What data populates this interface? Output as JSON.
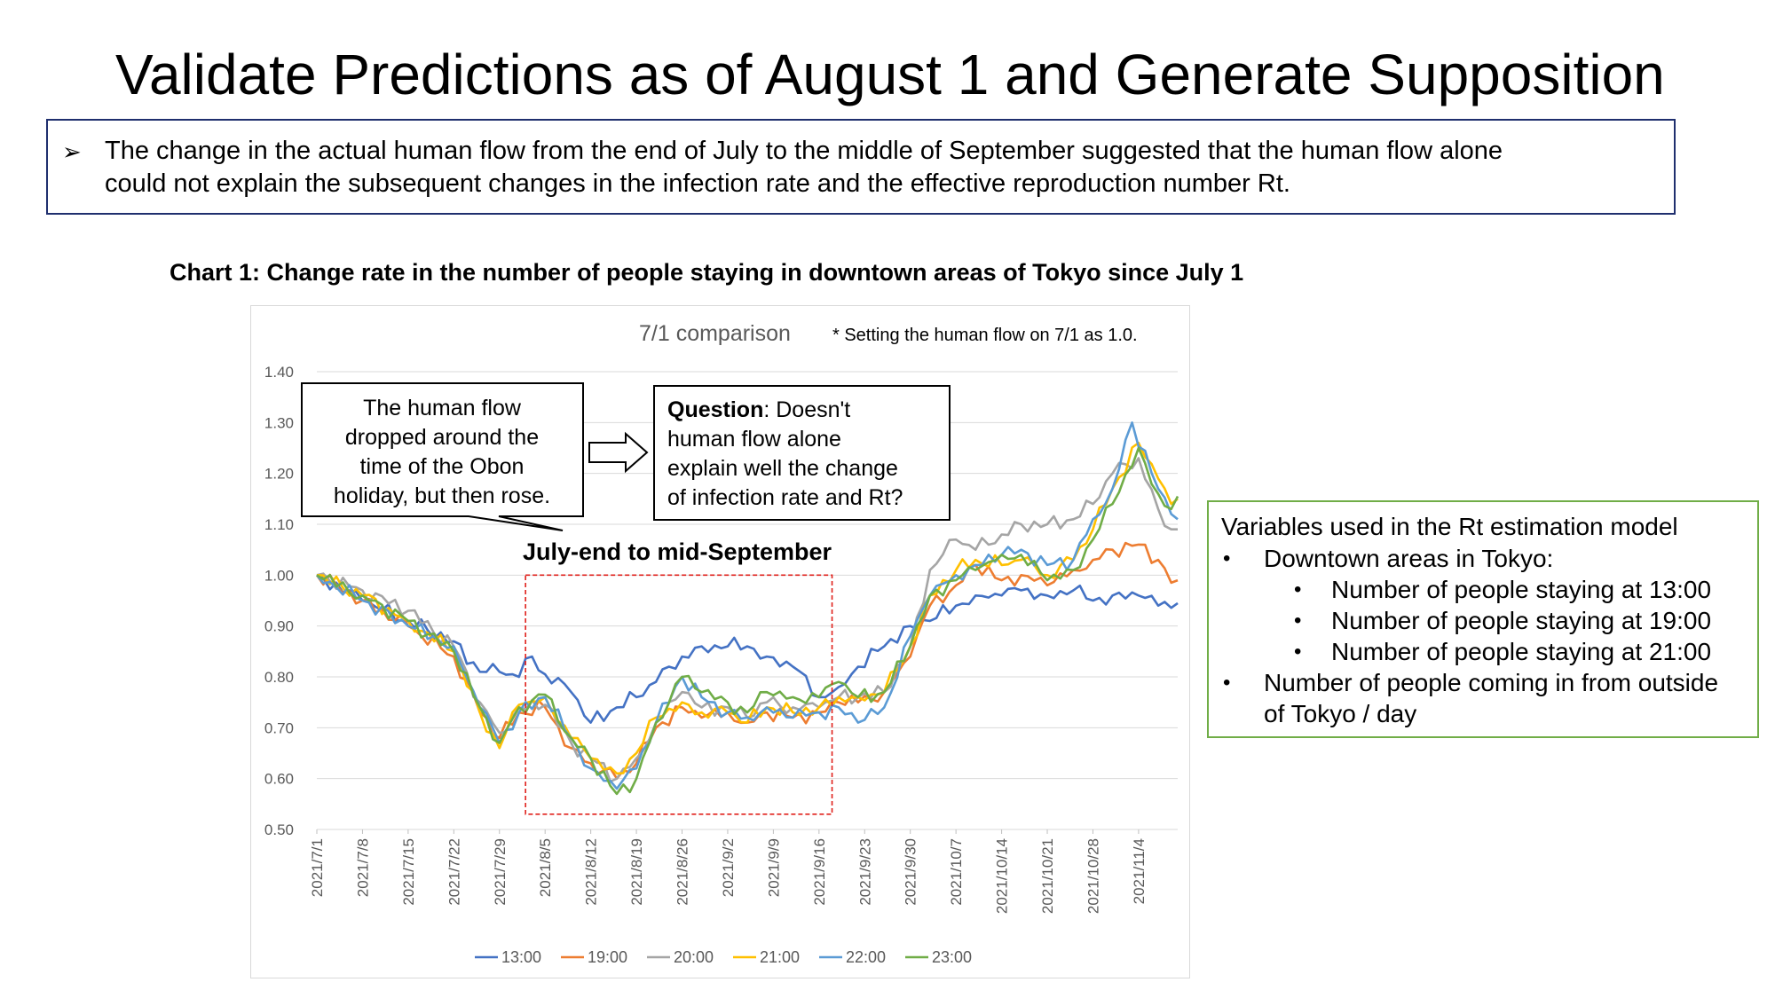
{
  "title": "Validate Predictions as of August 1 and Generate Supposition",
  "summary": {
    "bullet_icon": "arrow-bullet-icon",
    "line1": "The change in the actual human flow from the end of July to the middle of September suggested that the human flow alone",
    "line2": "could not explain the subsequent changes in the infection rate and the effective reproduction number Rt."
  },
  "chart_heading": "Chart 1: Change rate in the number of people staying in downtown areas of Tokyo since July 1",
  "annotations": {
    "inner_title": "7/1 comparison",
    "note": "* Setting the human flow on 7/1 as 1.0.",
    "callout_left": [
      "The human flow",
      "dropped around the",
      "time of the Obon",
      "holiday, but then rose."
    ],
    "question_bold": "Question",
    "question_rest_first": ": Doesn't",
    "question_lines": [
      "human flow alone",
      "explain well the change",
      "of infection rate and Rt?"
    ],
    "highlight_label": "July-end to mid-September",
    "highlight_range": [
      "2021/8/2",
      "2021/9/18"
    ]
  },
  "variables": {
    "title": "Variables used in the Rt estimation model",
    "items": [
      {
        "level": 1,
        "text": "Downtown areas in Tokyo:"
      },
      {
        "level": 2,
        "text": "Number of people staying at 13:00"
      },
      {
        "level": 2,
        "text": "Number of people staying at 19:00"
      },
      {
        "level": 2,
        "text": "Number of people staying at 21:00"
      },
      {
        "level": 1,
        "text": "Number of people coming in from outside"
      },
      {
        "level": 1,
        "text": "of Tokyo / day",
        "continuation": true
      }
    ]
  },
  "chart_data": {
    "type": "line",
    "title": "7/1 comparison",
    "xlabel": "",
    "ylabel": "",
    "ylim": [
      0.5,
      1.4
    ],
    "yticks": [
      "0.50",
      "0.60",
      "0.70",
      "0.80",
      "0.90",
      "1.00",
      "1.10",
      "1.20",
      "1.30",
      "1.40"
    ],
    "x_start": "2021/7/1",
    "x_step_days": 1,
    "x_count": 133,
    "x_tick_labels": [
      "2021/7/1",
      "2021/7/8",
      "2021/7/15",
      "2021/7/22",
      "2021/7/29",
      "2021/8/5",
      "2021/8/12",
      "2021/8/19",
      "2021/8/26",
      "2021/9/2",
      "2021/9/9",
      "2021/9/16",
      "2021/9/23",
      "2021/9/30",
      "2021/10/7",
      "2021/10/14",
      "2021/10/21",
      "2021/10/28",
      "2021/11/4"
    ],
    "grid": true,
    "legend": "bottom",
    "colors": {
      "13:00": "#4472c4",
      "19:00": "#ed7d31",
      "20:00": "#a5a5a5",
      "21:00": "#ffc000",
      "22:00": "#5b9bd5",
      "23:00": "#70ad47"
    },
    "anchors": {
      "13:00": [
        [
          0,
          1.0
        ],
        [
          7,
          0.95
        ],
        [
          14,
          0.91
        ],
        [
          21,
          0.87
        ],
        [
          25,
          0.81
        ],
        [
          28,
          0.81
        ],
        [
          31,
          0.8
        ],
        [
          33,
          0.84
        ],
        [
          35,
          0.805
        ],
        [
          39,
          0.77
        ],
        [
          42,
          0.71
        ],
        [
          46,
          0.74
        ],
        [
          49,
          0.76
        ],
        [
          52,
          0.79
        ],
        [
          56,
          0.84
        ],
        [
          59,
          0.86
        ],
        [
          63,
          0.86
        ],
        [
          66,
          0.86
        ],
        [
          69,
          0.84
        ],
        [
          73,
          0.82
        ],
        [
          77,
          0.76
        ],
        [
          80,
          0.78
        ],
        [
          83,
          0.82
        ],
        [
          87,
          0.86
        ],
        [
          91,
          0.9
        ],
        [
          94,
          0.91
        ],
        [
          98,
          0.94
        ],
        [
          101,
          0.96
        ],
        [
          105,
          0.96
        ],
        [
          108,
          0.97
        ],
        [
          112,
          0.96
        ],
        [
          116,
          0.97
        ],
        [
          119,
          0.95
        ],
        [
          122,
          0.96
        ],
        [
          126,
          0.96
        ],
        [
          129,
          0.94
        ],
        [
          132,
          0.945
        ]
      ],
      "19:00": [
        [
          0,
          1.0
        ],
        [
          7,
          0.95
        ],
        [
          14,
          0.9
        ],
        [
          21,
          0.84
        ],
        [
          25,
          0.73
        ],
        [
          28,
          0.68
        ],
        [
          31,
          0.73
        ],
        [
          35,
          0.74
        ],
        [
          39,
          0.66
        ],
        [
          42,
          0.63
        ],
        [
          46,
          0.6
        ],
        [
          49,
          0.63
        ],
        [
          52,
          0.7
        ],
        [
          56,
          0.74
        ],
        [
          59,
          0.72
        ],
        [
          63,
          0.73
        ],
        [
          66,
          0.71
        ],
        [
          69,
          0.73
        ],
        [
          73,
          0.72
        ],
        [
          77,
          0.73
        ],
        [
          80,
          0.75
        ],
        [
          83,
          0.75
        ],
        [
          87,
          0.77
        ],
        [
          91,
          0.84
        ],
        [
          94,
          0.94
        ],
        [
          98,
          0.98
        ],
        [
          101,
          1.02
        ],
        [
          105,
          0.99
        ],
        [
          108,
          1.0
        ],
        [
          112,
          0.98
        ],
        [
          116,
          1.01
        ],
        [
          119,
          1.03
        ],
        [
          122,
          1.05
        ],
        [
          126,
          1.06
        ],
        [
          129,
          1.03
        ],
        [
          131,
          0.985
        ],
        [
          132,
          0.99
        ]
      ],
      "20:00": [
        [
          0,
          1.0
        ],
        [
          7,
          0.97
        ],
        [
          14,
          0.93
        ],
        [
          21,
          0.86
        ],
        [
          25,
          0.75
        ],
        [
          28,
          0.69
        ],
        [
          31,
          0.74
        ],
        [
          35,
          0.745
        ],
        [
          39,
          0.67
        ],
        [
          42,
          0.64
        ],
        [
          46,
          0.6
        ],
        [
          49,
          0.64
        ],
        [
          52,
          0.71
        ],
        [
          56,
          0.77
        ],
        [
          59,
          0.74
        ],
        [
          63,
          0.74
        ],
        [
          66,
          0.72
        ],
        [
          69,
          0.75
        ],
        [
          73,
          0.74
        ],
        [
          77,
          0.74
        ],
        [
          80,
          0.76
        ],
        [
          83,
          0.76
        ],
        [
          87,
          0.77
        ],
        [
          91,
          0.86
        ],
        [
          94,
          1.01
        ],
        [
          98,
          1.07
        ],
        [
          101,
          1.05
        ],
        [
          105,
          1.08
        ],
        [
          108,
          1.1
        ],
        [
          112,
          1.1
        ],
        [
          116,
          1.11
        ],
        [
          119,
          1.14
        ],
        [
          122,
          1.2
        ],
        [
          126,
          1.23
        ],
        [
          129,
          1.13
        ],
        [
          131,
          1.09
        ],
        [
          132,
          1.09
        ]
      ],
      "21:00": [
        [
          0,
          1.0
        ],
        [
          7,
          0.96
        ],
        [
          14,
          0.91
        ],
        [
          21,
          0.85
        ],
        [
          25,
          0.73
        ],
        [
          28,
          0.66
        ],
        [
          31,
          0.745
        ],
        [
          35,
          0.76
        ],
        [
          39,
          0.68
        ],
        [
          42,
          0.64
        ],
        [
          46,
          0.61
        ],
        [
          49,
          0.65
        ],
        [
          52,
          0.72
        ],
        [
          56,
          0.75
        ],
        [
          59,
          0.73
        ],
        [
          63,
          0.73
        ],
        [
          66,
          0.71
        ],
        [
          69,
          0.74
        ],
        [
          73,
          0.73
        ],
        [
          77,
          0.74
        ],
        [
          80,
          0.76
        ],
        [
          83,
          0.76
        ],
        [
          87,
          0.77
        ],
        [
          91,
          0.86
        ],
        [
          94,
          0.96
        ],
        [
          98,
          1.01
        ],
        [
          101,
          1.03
        ],
        [
          105,
          1.02
        ],
        [
          108,
          1.03
        ],
        [
          112,
          1.0
        ],
        [
          116,
          1.03
        ],
        [
          119,
          1.09
        ],
        [
          122,
          1.17
        ],
        [
          126,
          1.26
        ],
        [
          129,
          1.19
        ],
        [
          131,
          1.14
        ],
        [
          132,
          1.15
        ]
      ],
      "22:00": [
        [
          0,
          1.0
        ],
        [
          7,
          0.95
        ],
        [
          14,
          0.9
        ],
        [
          21,
          0.86
        ],
        [
          25,
          0.74
        ],
        [
          28,
          0.67
        ],
        [
          31,
          0.73
        ],
        [
          35,
          0.76
        ],
        [
          39,
          0.68
        ],
        [
          42,
          0.62
        ],
        [
          46,
          0.58
        ],
        [
          49,
          0.62
        ],
        [
          52,
          0.71
        ],
        [
          56,
          0.8
        ],
        [
          59,
          0.76
        ],
        [
          63,
          0.73
        ],
        [
          66,
          0.72
        ],
        [
          69,
          0.74
        ],
        [
          73,
          0.72
        ],
        [
          77,
          0.73
        ],
        [
          80,
          0.74
        ],
        [
          83,
          0.71
        ],
        [
          87,
          0.74
        ],
        [
          91,
          0.88
        ],
        [
          94,
          0.96
        ],
        [
          98,
          1.0
        ],
        [
          101,
          1.02
        ],
        [
          105,
          1.04
        ],
        [
          108,
          1.05
        ],
        [
          112,
          1.02
        ],
        [
          116,
          1.03
        ],
        [
          119,
          1.11
        ],
        [
          122,
          1.17
        ],
        [
          125,
          1.3
        ],
        [
          129,
          1.17
        ],
        [
          131,
          1.12
        ],
        [
          132,
          1.11
        ]
      ],
      "23:00": [
        [
          0,
          1.0
        ],
        [
          7,
          0.96
        ],
        [
          14,
          0.91
        ],
        [
          21,
          0.85
        ],
        [
          25,
          0.74
        ],
        [
          28,
          0.67
        ],
        [
          31,
          0.74
        ],
        [
          35,
          0.765
        ],
        [
          39,
          0.68
        ],
        [
          42,
          0.64
        ],
        [
          46,
          0.57
        ],
        [
          49,
          0.6
        ],
        [
          52,
          0.71
        ],
        [
          56,
          0.8
        ],
        [
          59,
          0.77
        ],
        [
          63,
          0.75
        ],
        [
          66,
          0.73
        ],
        [
          69,
          0.77
        ],
        [
          73,
          0.76
        ],
        [
          77,
          0.76
        ],
        [
          80,
          0.79
        ],
        [
          83,
          0.76
        ],
        [
          87,
          0.77
        ],
        [
          91,
          0.86
        ],
        [
          94,
          0.96
        ],
        [
          98,
          0.99
        ],
        [
          101,
          1.01
        ],
        [
          105,
          1.04
        ],
        [
          108,
          1.04
        ],
        [
          112,
          0.99
        ],
        [
          116,
          1.01
        ],
        [
          119,
          1.07
        ],
        [
          122,
          1.14
        ],
        [
          126,
          1.25
        ],
        [
          129,
          1.16
        ],
        [
          131,
          1.13
        ],
        [
          132,
          1.155
        ]
      ]
    }
  }
}
